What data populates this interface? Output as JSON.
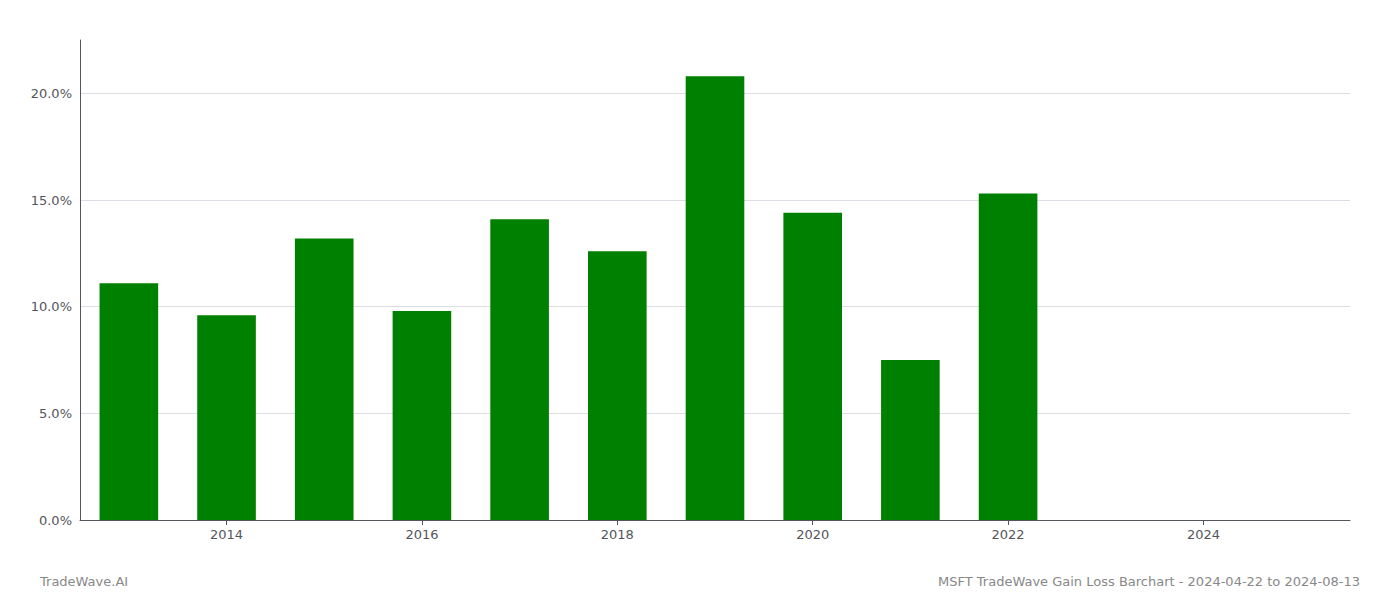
{
  "chart_data": {
    "type": "bar",
    "x": [
      2013,
      2014,
      2015,
      2016,
      2017,
      2018,
      2019,
      2020,
      2021,
      2022
    ],
    "values": [
      0.111,
      0.096,
      0.132,
      0.098,
      0.141,
      0.126,
      0.208,
      0.144,
      0.075,
      0.153
    ],
    "color": "#008000",
    "xlim": [
      2012.5,
      2025.5
    ],
    "xticks": [
      2014,
      2016,
      2018,
      2020,
      2022,
      2024
    ],
    "ylim": [
      0,
      0.225
    ],
    "yticks": [
      {
        "value": 0.0,
        "label": "0.0%"
      },
      {
        "value": 0.05,
        "label": "5.0%"
      },
      {
        "value": 0.1,
        "label": "10.0%"
      },
      {
        "value": 0.15,
        "label": "15.0%"
      },
      {
        "value": 0.2,
        "label": "20.0%"
      }
    ],
    "grid": true,
    "annotations": [
      "TradeWave.AI",
      "MSFT TradeWave Gain Loss Barchart - 2024-04-22 to 2024-08-13"
    ]
  }
}
